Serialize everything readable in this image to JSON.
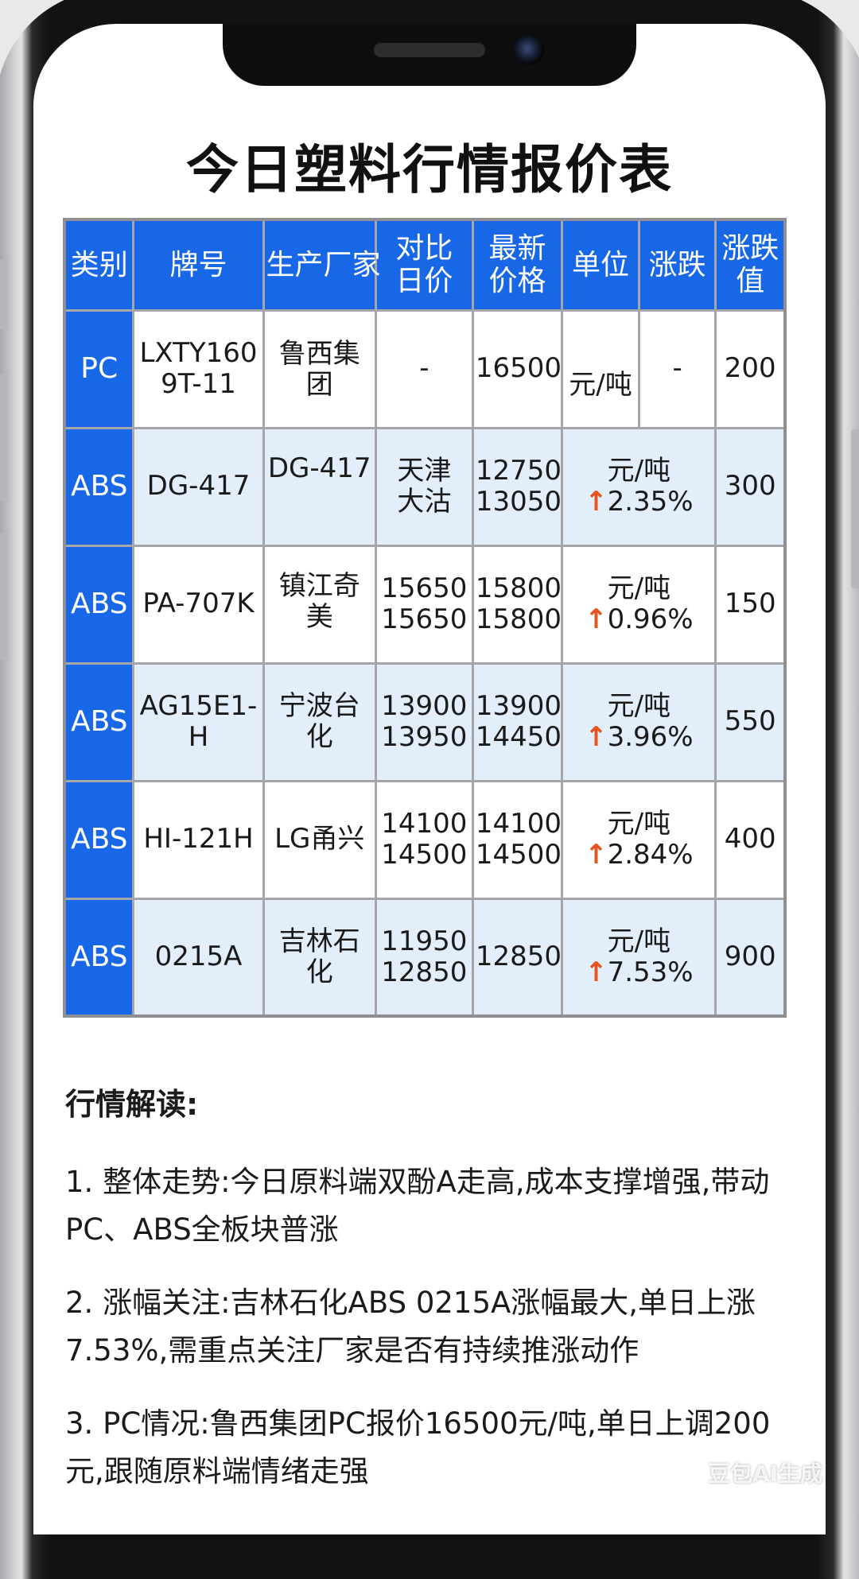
{
  "page": {
    "title": "今日塑料行情报价表"
  },
  "table": {
    "headers": [
      [
        "类别"
      ],
      [
        "牌号"
      ],
      [
        "生产厂家"
      ],
      [
        "对比",
        "日价"
      ],
      [
        "最新",
        "价格"
      ],
      [
        "单位"
      ],
      [
        "涨跌"
      ],
      [
        "涨跌",
        "值"
      ]
    ],
    "pc_row": {
      "category": "PC",
      "grade": [
        "LXTY160",
        "9T-11"
      ],
      "manufacturer": "鲁西集团",
      "compare_price": "-",
      "latest_price": "16500",
      "unit": "元/吨",
      "change": "-",
      "change_value": "200"
    },
    "rows": [
      {
        "category": "ABS",
        "grade": "DG-417",
        "manufacturer": "DG-417",
        "compare_price": [
          "天津",
          "大沽"
        ],
        "latest_price": [
          "12750",
          "13050"
        ],
        "unit": "元/吨",
        "change_pct": "2.35%",
        "change_value": "300"
      },
      {
        "category": "ABS",
        "grade": "PA-707K",
        "manufacturer": "镇江奇美",
        "compare_price": [
          "15650",
          "15650"
        ],
        "latest_price": [
          "15800",
          "15800"
        ],
        "unit": "元/吨",
        "change_pct": "0.96%",
        "change_value": "150"
      },
      {
        "category": "ABS",
        "grade": "AG15E1-H",
        "manufacturer": "宁波台化",
        "compare_price": [
          "13900",
          "13950"
        ],
        "latest_price": [
          "13900",
          "14450"
        ],
        "unit": "元/吨",
        "change_pct": "3.96%",
        "change_value": "550"
      },
      {
        "category": "ABS",
        "grade": "HI-121H",
        "manufacturer": "LG甬兴",
        "compare_price": [
          "14100",
          "14500"
        ],
        "latest_price": [
          "14100",
          "14500"
        ],
        "unit": "元/吨",
        "change_pct": "2.84%",
        "change_value": "400"
      },
      {
        "category": "ABS",
        "grade": "0215A",
        "manufacturer": "吉林石化",
        "compare_price": [
          "11950",
          "12850"
        ],
        "latest_price": [
          "12850"
        ],
        "unit": "元/吨",
        "change_pct": "7.53%",
        "change_value": "900"
      }
    ],
    "up_arrow": "↑"
  },
  "analysis": {
    "heading": "行情解读:",
    "items": [
      "1. 整体走势:今日原料端双酚A走高,成本支撑增强,带动PC、ABS全板块普涨",
      "2. 涨幅关注:吉林石化ABS 0215A涨幅最大,单日上涨7.53%,需重点关注厂家是否有持续推涨动作",
      "3. PC情况:鲁西集团PC报价16500元/吨,单日上调200元,跟随原料端情绪走强"
    ]
  },
  "watermark": "豆包AI生成",
  "colors": {
    "header_blue": "#1767e6",
    "row_tint": "#e3eefb",
    "arrow_orange": "#e8541f"
  }
}
